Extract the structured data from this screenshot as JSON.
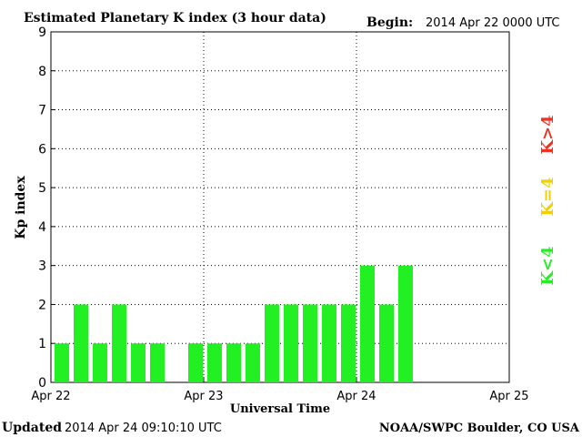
{
  "header": {
    "title": "Estimated Planetary K index (3 hour data)",
    "begin_label": "Begin:",
    "begin_value": "2014 Apr 22 0000 UTC"
  },
  "footer": {
    "updated_label": "Updated",
    "updated_value": "2014 Apr 24 09:10:10 UTC",
    "source": "NOAA/SWPC Boulder, CO USA"
  },
  "legend": {
    "high": "K>4",
    "equal": "K=4",
    "low": "K<4"
  },
  "colors": {
    "low": "#22f022",
    "equal": "#f0d000",
    "high": "#f03020",
    "axis": "#000000"
  },
  "chart_data": {
    "type": "bar",
    "title": "Estimated Planetary K index (3 hour data)",
    "xlabel": "Universal Time",
    "ylabel": "Kp index",
    "ylim": [
      0,
      9
    ],
    "yticks": [
      "0",
      "1",
      "2",
      "3",
      "4",
      "5",
      "6",
      "7",
      "8",
      "9"
    ],
    "xticks": [
      "Apr 22",
      "Apr 23",
      "Apr 24",
      "Apr 25"
    ],
    "grid": true,
    "interval_hours": 3,
    "series": [
      {
        "values": [
          1,
          2,
          1,
          2,
          1,
          1,
          null,
          1,
          1,
          1,
          1,
          2,
          2,
          2,
          2,
          2,
          3,
          2,
          3
        ]
      }
    ]
  }
}
